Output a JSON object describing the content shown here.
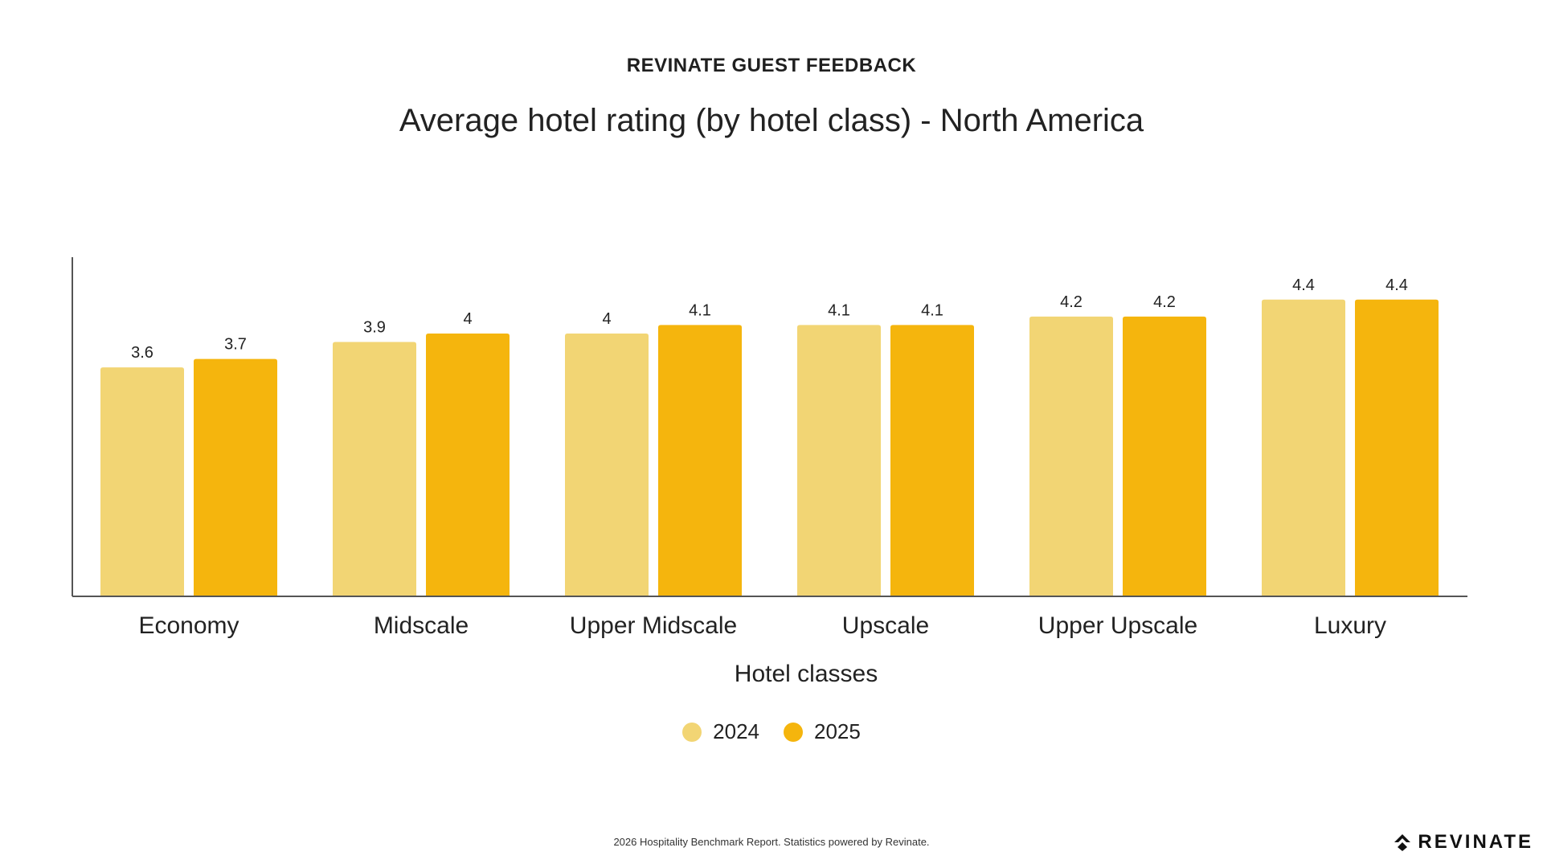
{
  "header": {
    "eyebrow": "REVINATE GUEST FEEDBACK",
    "title": "Average hotel rating (by hotel class) - North America"
  },
  "colors": {
    "series_2024": "#F2D574",
    "series_2025": "#F5B50D",
    "axis": "#555555",
    "text": "#222222"
  },
  "chart_data": {
    "type": "bar",
    "title": "Average hotel rating (by hotel class) - North America",
    "xlabel": "Hotel classes",
    "ylabel": "",
    "categories": [
      "Economy",
      "Midscale",
      "Upper Midscale",
      "Upscale",
      "Upper Upscale",
      "Luxury"
    ],
    "series": [
      {
        "name": "2024",
        "values": [
          3.6,
          3.9,
          4,
          4.1,
          4.2,
          4.4
        ],
        "labels": [
          "3.6",
          "3.9",
          "4",
          "4.1",
          "4.2",
          "4.4"
        ]
      },
      {
        "name": "2025",
        "values": [
          3.7,
          4,
          4.1,
          4.1,
          4.2,
          4.4
        ],
        "labels": [
          "3.7",
          "4",
          "4.1",
          "4.1",
          "4.2",
          "4.4"
        ]
      }
    ],
    "ylim": [
      0,
      5
    ],
    "grid": false,
    "legend": "bottom-center"
  },
  "legend": {
    "items": [
      {
        "label": "2024"
      },
      {
        "label": "2025"
      }
    ]
  },
  "footer": {
    "note": "2026 Hospitality Benchmark Report. Statistics powered by Revinate.",
    "brand": "REVINATE"
  }
}
